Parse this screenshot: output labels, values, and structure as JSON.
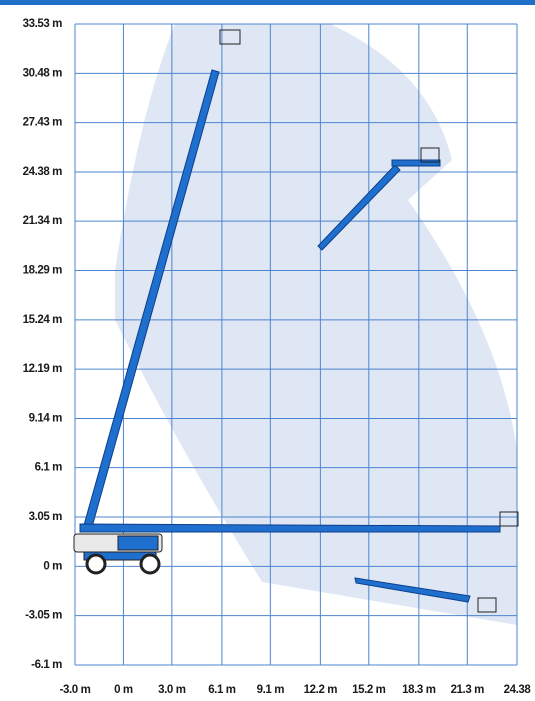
{
  "axes": {
    "xlim": [
      -3.0,
      24.38
    ],
    "ylim": [
      -6.1,
      33.53
    ],
    "xticks": [
      {
        "value": -3.0,
        "label": "-3.0 m"
      },
      {
        "value": 0,
        "label": "0 m"
      },
      {
        "value": 3.0,
        "label": "3.0 m"
      },
      {
        "value": 6.1,
        "label": "6.1 m"
      },
      {
        "value": 9.1,
        "label": "9.1 m"
      },
      {
        "value": 12.2,
        "label": "12.2 m"
      },
      {
        "value": 15.2,
        "label": "15.2 m"
      },
      {
        "value": 18.3,
        "label": "18.3 m"
      },
      {
        "value": 21.3,
        "label": "21.3 m"
      },
      24.38
    ],
    "yticks": [
      {
        "value": 33.53,
        "label": "33.53 m"
      },
      {
        "value": 30.48,
        "label": "30.48 m"
      },
      {
        "value": 27.43,
        "label": "27.43 m"
      },
      {
        "value": 24.38,
        "label": "24.38 m"
      },
      {
        "value": 21.34,
        "label": "21.34 m"
      },
      {
        "value": 18.29,
        "label": "18.29 m"
      },
      {
        "value": 15.24,
        "label": "15.24 m"
      },
      {
        "value": 12.19,
        "label": "12.19 m"
      },
      {
        "value": 9.14,
        "label": "9.14 m"
      },
      {
        "value": 6.1,
        "label": "6.1 m"
      },
      {
        "value": 3.05,
        "label": "3.05 m"
      },
      {
        "value": 0,
        "label": "0 m"
      },
      {
        "value": -3.05,
        "label": "-3.05 m"
      },
      {
        "value": -6.1,
        "label": "-6.1 m"
      }
    ]
  }
}
